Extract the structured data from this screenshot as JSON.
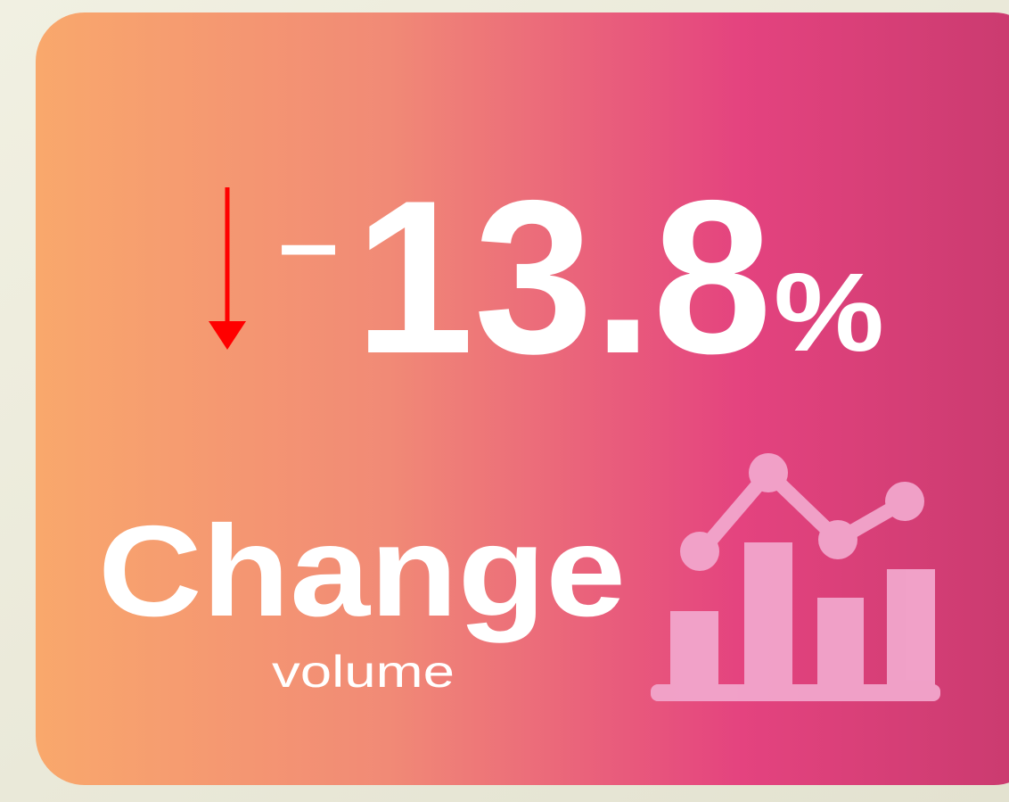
{
  "kpi": {
    "sign": "−",
    "value": "13.8",
    "unit": "%",
    "label": "Change",
    "sublabel": "volume"
  }
}
